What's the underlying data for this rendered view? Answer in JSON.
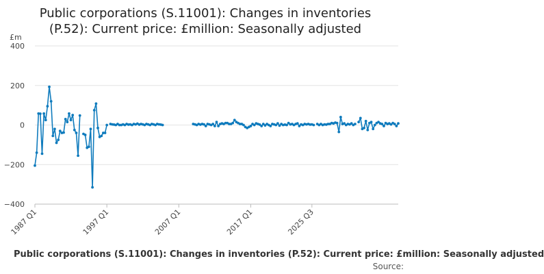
{
  "chart_data": {
    "type": "line",
    "title": "Public corporations (S.11001): Changes in inventories (P.52): Current price: £million: Seasonally adjusted",
    "title_line1": "Public corporations (S.11001): Changes in inventories",
    "title_line2": "(P.52): Current price: £million: Seasonally adjusted",
    "unit_label": "£m",
    "x_tick_labels": [
      "1987 Q1",
      "1997 Q1",
      "2007 Q1",
      "2017 Q1",
      "2025 Q3"
    ],
    "y_ticks": [
      -400,
      -200,
      0,
      200,
      400
    ],
    "y_tick_labels": [
      "−400",
      "−200",
      "0",
      "200",
      "400"
    ],
    "ylim": [
      -400,
      400
    ],
    "grid": true,
    "line_color": "#0f7bbd",
    "series": [
      {
        "start_year": 1987,
        "start_quarter": 1,
        "values": [
          -205,
          -140,
          58,
          57,
          -145,
          58,
          25,
          95,
          193,
          120,
          -55,
          -20,
          -90,
          -75,
          -30,
          -40,
          -38,
          30,
          15,
          58,
          25,
          50,
          -25,
          -40,
          -155,
          48,
          null,
          -45,
          -50,
          -115,
          -110,
          -20,
          -315,
          75,
          108,
          -15,
          -60,
          -55,
          -40,
          -40,
          0,
          null,
          5,
          3,
          2,
          0,
          5,
          0,
          0,
          3,
          0,
          5,
          2,
          3,
          0,
          5,
          3,
          7,
          2,
          5,
          3,
          0,
          5,
          3,
          0,
          5,
          3,
          0,
          5,
          3,
          2,
          0,
          null,
          null,
          null,
          null,
          null,
          null,
          null,
          null,
          null,
          null,
          null,
          null,
          null,
          null,
          null,
          null,
          5,
          3,
          0,
          5,
          2,
          5,
          3,
          -5,
          5,
          3,
          0,
          5,
          -5,
          15,
          -5,
          5,
          8,
          5,
          10,
          10,
          5,
          5,
          10,
          25,
          15,
          10,
          5,
          5,
          0,
          -10,
          -15,
          -10,
          -5,
          5,
          0,
          8,
          5,
          2,
          -5,
          5,
          -2,
          5,
          0,
          -5,
          5,
          3,
          0,
          8,
          -3,
          5,
          0,
          2,
          0,
          10,
          3,
          5,
          0,
          5,
          8,
          -5,
          3,
          0,
          5,
          3,
          5,
          2,
          3,
          0,
          null,
          5,
          0,
          5,
          0,
          3,
          2,
          5,
          5,
          10,
          8,
          12,
          10,
          -35,
          40,
          5,
          8,
          0,
          5,
          3,
          8,
          0,
          5,
          null,
          15,
          35,
          -20,
          -15,
          20,
          -25,
          10,
          15,
          -20,
          0,
          10,
          15,
          8,
          5,
          -5,
          10,
          5,
          8,
          3,
          10,
          5,
          -5,
          8
        ]
      }
    ]
  },
  "footer": {
    "title": "Public corporations (S.11001): Changes in inventories (P.52): Current price: £million: Seasonally adjusted",
    "source": "Source:"
  }
}
